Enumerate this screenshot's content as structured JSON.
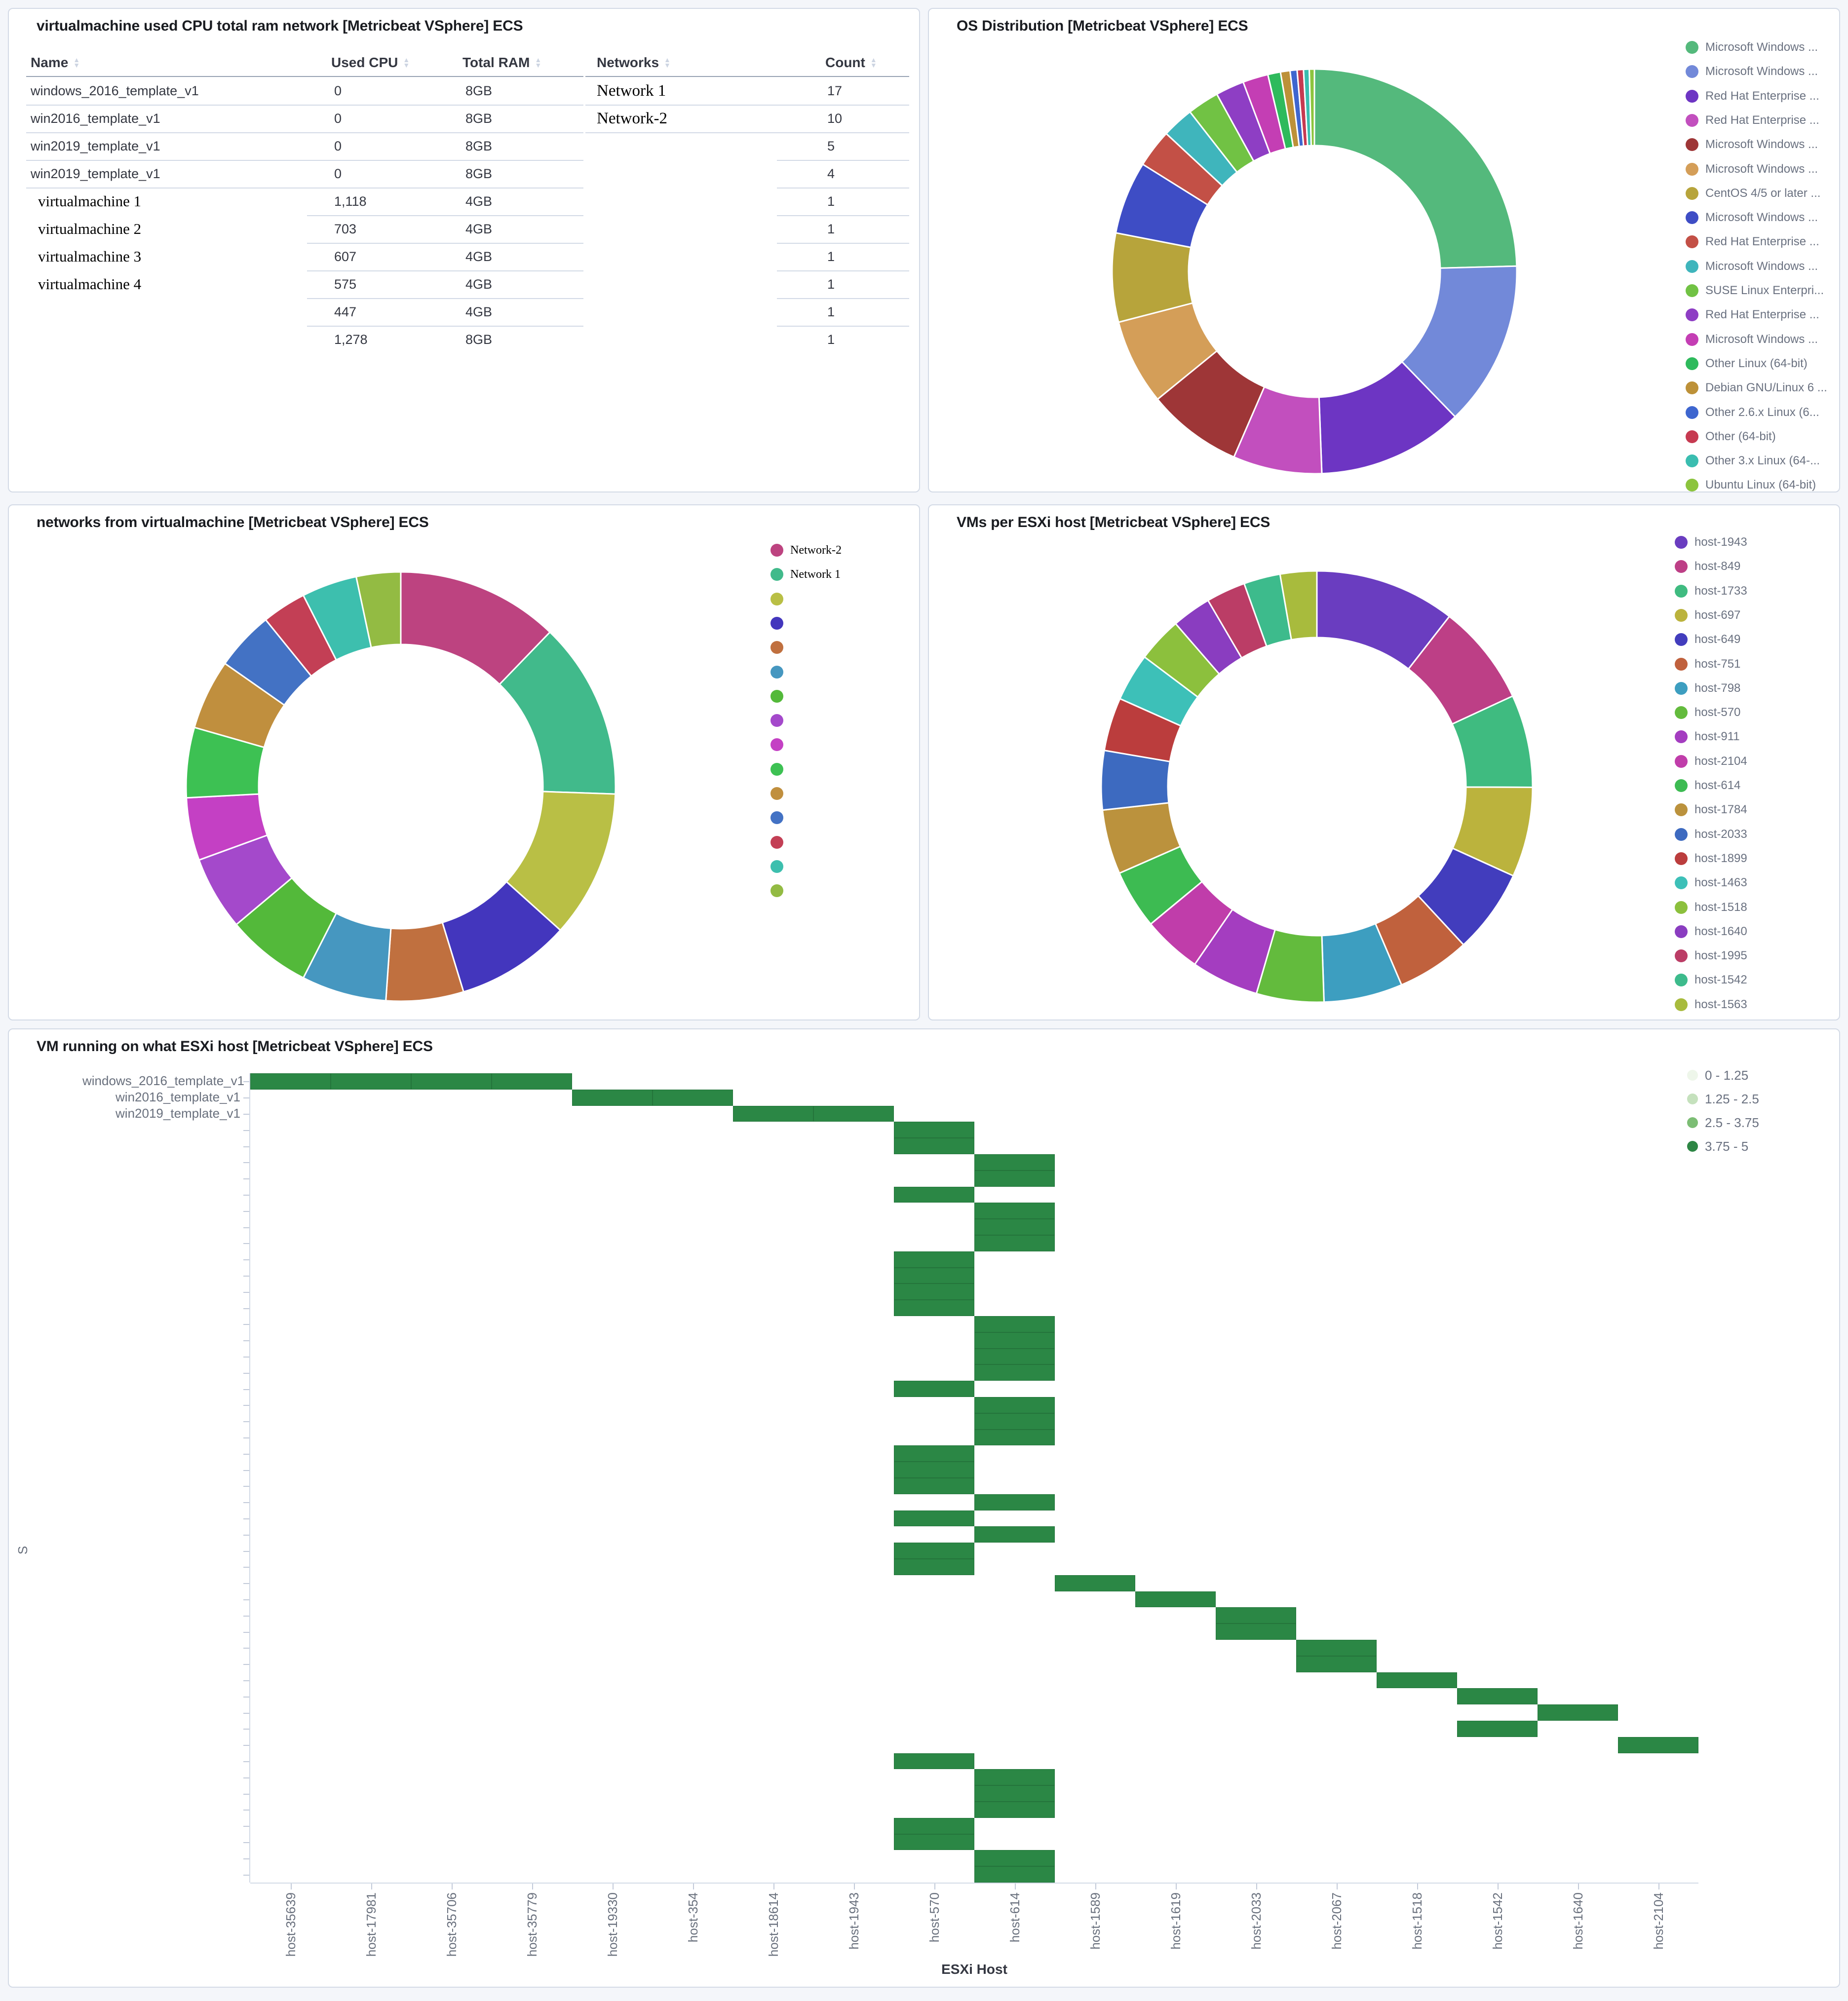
{
  "icons": {
    "table_header_sort": "sort-arrows-icon"
  },
  "heatmap_cell_color": "#2b8745",
  "chart_data": [
    {
      "id": "vm_table",
      "type": "table",
      "title": "virtualmachine used CPU total ram network [Metricbeat VSphere] ECS",
      "columns": [
        "Name",
        "Used CPU",
        "Total RAM",
        "Networks",
        "Count"
      ],
      "rows": [
        [
          "windows_2016_template_v1",
          "0",
          "8GB",
          "Network 1",
          "17"
        ],
        [
          "win2016_template_v1",
          "0",
          "8GB",
          "Network-2",
          "10"
        ],
        [
          "win2019_template_v1",
          "0",
          "8GB",
          "",
          "5"
        ],
        [
          "win2019_template_v1",
          "0",
          "8GB",
          "",
          "4"
        ],
        [
          "virtualmachine 1",
          "1,118",
          "4GB",
          "",
          "1"
        ],
        [
          "virtualmachine 2",
          "703",
          "4GB",
          "",
          "1"
        ],
        [
          "virtualmachine 3",
          "607",
          "4GB",
          "",
          "1"
        ],
        [
          "virtualmachine 4",
          "575",
          "4GB",
          "",
          "1"
        ],
        [
          "",
          "447",
          "4GB",
          "",
          "1"
        ],
        [
          "",
          "1,278",
          "8GB",
          "",
          "1"
        ]
      ]
    },
    {
      "id": "os_distribution",
      "type": "pie",
      "title": "OS Distribution [Metricbeat VSphere] ECS",
      "legend_position": "right",
      "labels": [
        "Microsoft Windows ...",
        "Microsoft Windows ...",
        "Red Hat Enterprise ...",
        "Red Hat Enterprise ...",
        "Microsoft Windows ...",
        "Microsoft Windows ...",
        "CentOS 4/5 or later ...",
        "Microsoft Windows ...",
        "Red Hat Enterprise ...",
        "Microsoft Windows ...",
        "SUSE Linux Enterpri...",
        "Red Hat Enterprise ...",
        "Microsoft Windows ...",
        "Other Linux (64-bit)",
        "Debian GNU/Linux 6 ...",
        "Other 2.6.x Linux (6...",
        "Other (64-bit)",
        "Other 3.x Linux (64-...",
        "Ubuntu Linux (64-bit)"
      ],
      "values": [
        97,
        52,
        46,
        28,
        30,
        27,
        28,
        23,
        12,
        10,
        10,
        9,
        8,
        4,
        3,
        2.2,
        2,
        1.8,
        1.6
      ],
      "colors": [
        "#54b97c",
        "#7289d9",
        "#6d35c3",
        "#c24fbe",
        "#9e3637",
        "#d49e58",
        "#b7a43b",
        "#3e4dc5",
        "#c35046",
        "#3fb5bc",
        "#71c244",
        "#8e3ec4",
        "#c43eb4",
        "#2eba5c",
        "#bd9138",
        "#3e66cf",
        "#c63a51",
        "#3abdb0",
        "#8cc43e"
      ]
    },
    {
      "id": "networks_from_virtualmachine",
      "type": "pie",
      "title": "networks from virtualmachine [Metricbeat VSphere] ECS",
      "legend_position": "right",
      "labels": [
        "Network-2",
        "Network 1",
        "",
        "",
        "",
        "",
        "",
        "",
        "",
        "",
        "",
        "",
        "",
        "",
        ""
      ],
      "values": [
        44,
        48,
        40,
        31,
        21,
        23,
        23,
        20,
        17,
        19,
        19,
        16,
        12,
        15,
        12
      ],
      "colors": [
        "#bd4380",
        "#41ba8b",
        "#b9bf45",
        "#4336bd",
        "#c0703f",
        "#4697c0",
        "#53b93a",
        "#a449cb",
        "#c440c4",
        "#3dc153",
        "#c08f3e",
        "#4372c4",
        "#c33f55",
        "#3dbfae",
        "#93bb43"
      ]
    },
    {
      "id": "vms_per_esxi_host",
      "type": "pie",
      "title": "VMs per ESXi host [Metricbeat VSphere] ECS",
      "legend_position": "right",
      "labels": [
        "host-1943",
        "host-849",
        "host-1733",
        "host-697",
        "host-649",
        "host-751",
        "host-798",
        "host-570",
        "host-911",
        "host-2104",
        "host-614",
        "host-1784",
        "host-2033",
        "host-1899",
        "host-1463",
        "host-1518",
        "host-1640",
        "host-1995",
        "host-1542",
        "host-1563"
      ],
      "values": [
        50,
        36,
        33,
        32,
        30,
        26,
        28,
        24,
        24,
        21,
        21,
        23,
        21,
        19,
        17,
        16,
        14,
        14,
        13,
        13
      ],
      "colors": [
        "#6a3dc0",
        "#bd3f86",
        "#3fbb80",
        "#bbb33d",
        "#423dbd",
        "#c0613d",
        "#3d9ec0",
        "#63bb3d",
        "#a43dc0",
        "#c03daa",
        "#3dbb52",
        "#bb923d",
        "#3d6ac0",
        "#bb3d3d",
        "#3dc0b8",
        "#8cc03d",
        "#8a3dc0",
        "#bb3d66",
        "#3dbb8c",
        "#a8bb3d"
      ]
    },
    {
      "id": "vm_running_on_host_heatmap",
      "type": "heatmap",
      "title": "VM running on what ESXi host [Metricbeat VSphere] ECS",
      "xlabel": "ESXi Host",
      "ylabel": "S",
      "x_categories": [
        "host-35639",
        "host-17981",
        "host-35706",
        "host-35779",
        "host-19330",
        "host-354",
        "host-18614",
        "host-1943",
        "host-570",
        "host-614",
        "host-1589",
        "host-1619",
        "host-2033",
        "host-2067",
        "host-1518",
        "host-1542",
        "host-1640",
        "host-2104"
      ],
      "y_labels": [
        "windows_2016_template_v1",
        "win2016_template_v1",
        "win2019_template_v1"
      ],
      "n_rows": 50,
      "value_range": [
        0,
        5
      ],
      "legend": [
        {
          "label": "0 - 1.25",
          "color": "#eef6ea"
        },
        {
          "label": "1.25 - 2.5",
          "color": "#c5e1bd"
        },
        {
          "label": "2.5 - 3.75",
          "color": "#7cbd74"
        },
        {
          "label": "3.75 - 5",
          "color": "#2d8644"
        }
      ],
      "cells": [
        [
          1,
          1
        ],
        [
          1,
          2
        ],
        [
          1,
          3
        ],
        [
          1,
          4
        ],
        [
          2,
          5
        ],
        [
          2,
          6
        ],
        [
          3,
          7
        ],
        [
          3,
          8
        ],
        [
          4,
          9
        ],
        [
          5,
          9
        ],
        [
          6,
          10
        ],
        [
          7,
          10
        ],
        [
          8,
          9
        ],
        [
          9,
          10
        ],
        [
          10,
          10
        ],
        [
          11,
          10
        ],
        [
          12,
          9
        ],
        [
          13,
          9
        ],
        [
          14,
          9
        ],
        [
          15,
          9
        ],
        [
          16,
          10
        ],
        [
          17,
          10
        ],
        [
          18,
          10
        ],
        [
          19,
          10
        ],
        [
          20,
          9
        ],
        [
          21,
          10
        ],
        [
          22,
          10
        ],
        [
          23,
          10
        ],
        [
          24,
          9
        ],
        [
          25,
          9
        ],
        [
          26,
          9
        ],
        [
          27,
          10
        ],
        [
          28,
          9
        ],
        [
          29,
          10
        ],
        [
          30,
          9
        ],
        [
          31,
          9
        ],
        [
          32,
          11
        ],
        [
          33,
          12
        ],
        [
          34,
          13
        ],
        [
          35,
          13
        ],
        [
          36,
          14
        ],
        [
          37,
          14
        ],
        [
          38,
          15
        ],
        [
          39,
          16
        ],
        [
          40,
          17
        ],
        [
          41,
          16
        ],
        [
          42,
          18
        ],
        [
          43,
          9
        ],
        [
          44,
          10
        ],
        [
          45,
          10
        ],
        [
          46,
          10
        ],
        [
          47,
          9
        ],
        [
          48,
          9
        ],
        [
          49,
          10
        ],
        [
          50,
          10
        ]
      ]
    }
  ]
}
